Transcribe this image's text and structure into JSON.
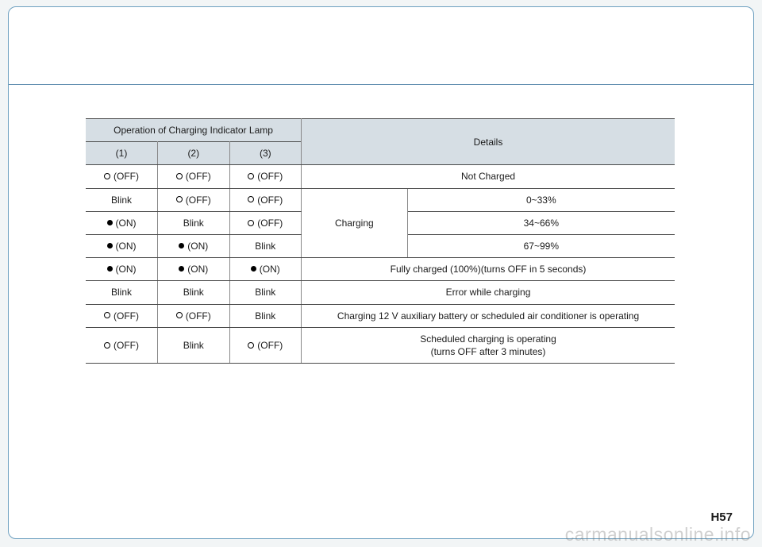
{
  "page_number": "H57",
  "watermark": "carmanualsonline.info",
  "table": {
    "header_bg": "#d6dee4",
    "border_color": "#4a4a4a",
    "inner_border_color": "#888888",
    "font_size": 12,
    "header": {
      "top_left": "Operation of Charging Indicator Lamp",
      "details": "Details",
      "col1": "(1)",
      "col2": "(2)",
      "col3": "(3)"
    },
    "off_label": "(OFF)",
    "on_label": "(ON)",
    "blink_label": "Blink",
    "charging_label": "Charging",
    "details_rows": {
      "r1": "Not Charged",
      "r2": "0~33%",
      "r3": "34~66%",
      "r4": "67~99%",
      "r5": "Fully charged (100%)(turns OFF in 5 seconds)",
      "r6": "Error while charging",
      "r7": "Charging 12 V auxiliary battery or scheduled air conditioner is operating",
      "r8_l1": "Scheduled charging is operating",
      "r8_l2": "(turns OFF after 3 minutes)"
    }
  }
}
